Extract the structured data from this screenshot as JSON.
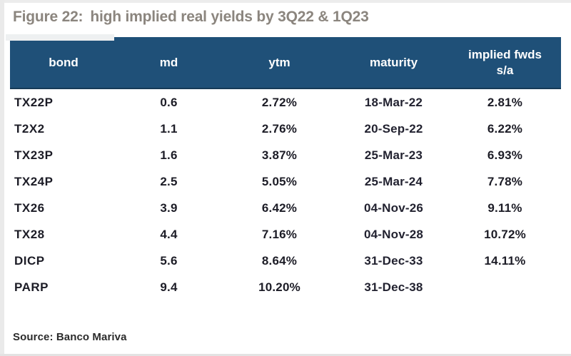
{
  "header": {
    "figure_label": "Figure 22:",
    "title_text": "high implied real yields by 3Q22 & 1Q23"
  },
  "chart_data": {
    "type": "table",
    "title": "Figure 22: high implied real yields by 3Q22 & 1Q23",
    "columns": [
      "bond",
      "md",
      "ytm",
      "maturity",
      "implied fwds s/a"
    ],
    "rows": [
      [
        "TX22P",
        "0.6",
        "2.72%",
        "18-Mar-22",
        "2.81%"
      ],
      [
        "T2X2",
        "1.1",
        "2.76%",
        "20-Sep-22",
        "6.22%"
      ],
      [
        "TX23P",
        "1.6",
        "3.87%",
        "25-Mar-23",
        "6.93%"
      ],
      [
        "TX24P",
        "2.5",
        "5.05%",
        "25-Mar-24",
        "7.78%"
      ],
      [
        "TX26",
        "3.9",
        "6.42%",
        "04-Nov-26",
        "9.11%"
      ],
      [
        "TX28",
        "4.4",
        "7.16%",
        "04-Nov-28",
        "10.72%"
      ],
      [
        "DICP",
        "5.6",
        "8.64%",
        "31-Dec-33",
        "14.11%"
      ],
      [
        "PARP",
        "9.4",
        "10.20%",
        "31-Dec-38",
        ""
      ]
    ],
    "source": "Source: Banco Mariva"
  },
  "footer": {
    "source": "Source: Banco Mariva"
  },
  "colors": {
    "header_bg": "#1f5078",
    "header_text": "#ffffff",
    "title_text": "#8b857e",
    "body_text": "#1c1c26",
    "frame_edge": "#eaeaea"
  }
}
